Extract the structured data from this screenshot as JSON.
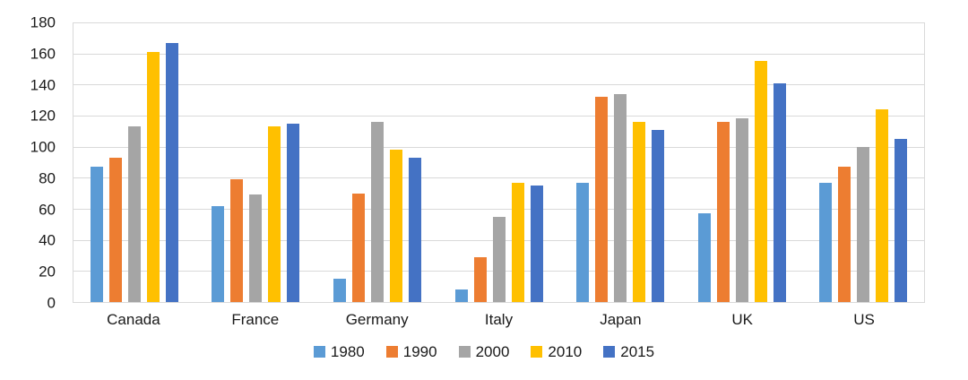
{
  "chart_data": {
    "type": "bar",
    "title": "",
    "xlabel": "",
    "ylabel": "",
    "categories": [
      "Canada",
      "France",
      "Germany",
      "Italy",
      "Japan",
      "UK",
      "US"
    ],
    "series": [
      {
        "name": "1980",
        "color": "#5B9BD5",
        "values": [
          87,
          62,
          15,
          8,
          77,
          57,
          77
        ]
      },
      {
        "name": "1990",
        "color": "#ED7D31",
        "values": [
          93,
          79,
          70,
          29,
          132,
          116,
          87
        ]
      },
      {
        "name": "2000",
        "color": "#A5A5A5",
        "values": [
          113,
          69,
          116,
          55,
          134,
          118,
          100
        ]
      },
      {
        "name": "2010",
        "color": "#FFC000",
        "values": [
          161,
          113,
          98,
          77,
          116,
          155,
          124
        ]
      },
      {
        "name": "2015",
        "color": "#4472C4",
        "values": [
          167,
          115,
          93,
          75,
          111,
          141,
          105
        ]
      }
    ],
    "ylim": [
      0,
      180
    ],
    "yticks": [
      0,
      20,
      40,
      60,
      80,
      100,
      120,
      140,
      160,
      180
    ],
    "grid": true,
    "gridline_color": "#D9D9D9",
    "axis_text_color": "#1a1a1a",
    "legend_position": "bottom"
  }
}
